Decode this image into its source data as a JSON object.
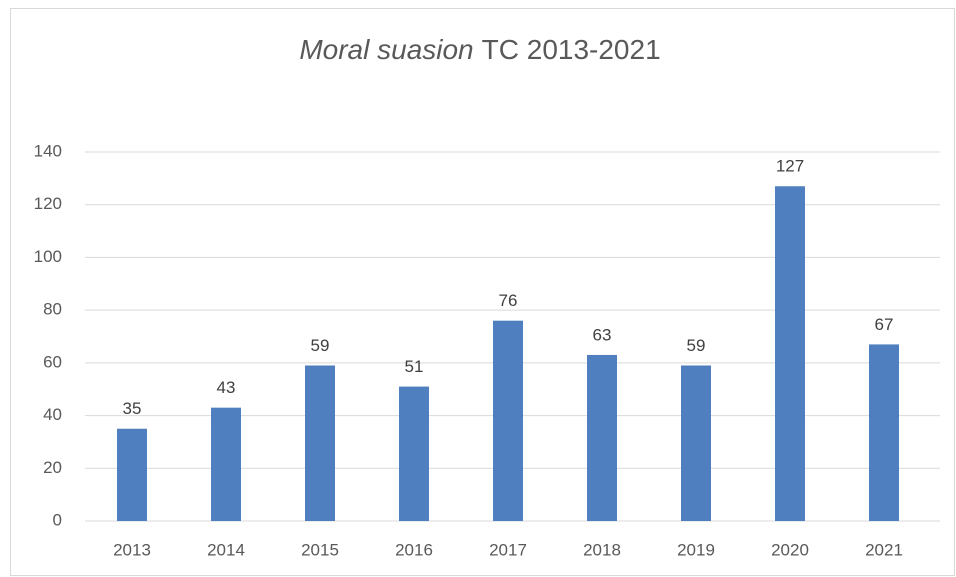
{
  "chart_data": {
    "type": "bar",
    "title": [
      "Moral suasion",
      "TC 2013-2021"
    ],
    "categories": [
      "2013",
      "2014",
      "2015",
      "2016",
      "2017",
      "2018",
      "2019",
      "2020",
      "2021"
    ],
    "values": [
      35,
      43,
      59,
      51,
      76,
      63,
      59,
      127,
      67
    ],
    "color": "#4f7fbe",
    "ylim": [
      0,
      140
    ],
    "yticks": [
      0,
      20,
      40,
      60,
      80,
      100,
      120,
      140
    ],
    "grid": true
  }
}
